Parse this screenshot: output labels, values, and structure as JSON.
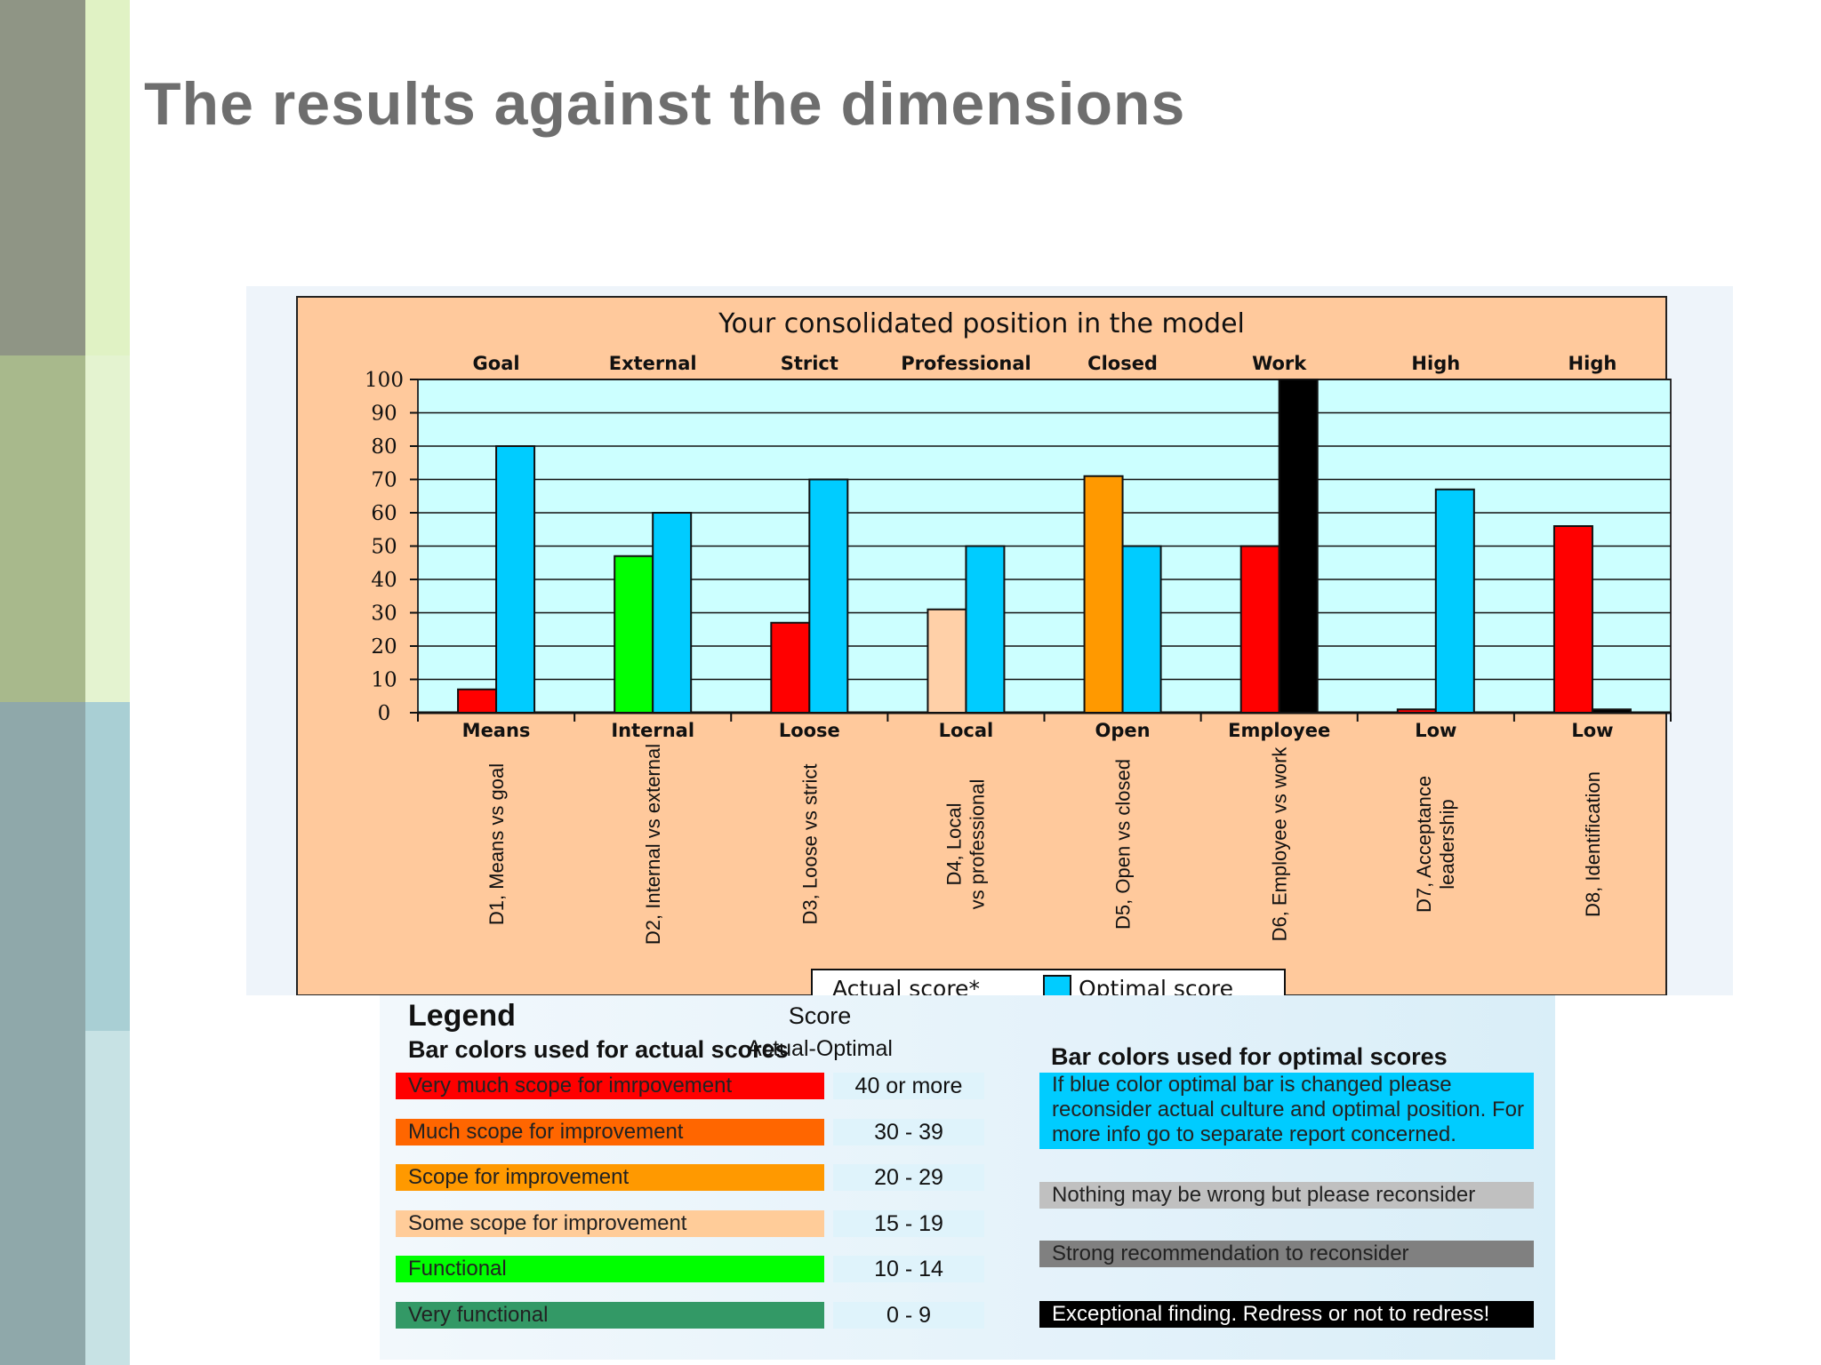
{
  "slide_title": "The results against the dimensions",
  "chart_data": {
    "type": "bar",
    "title": "Your consolidated position in the model",
    "ylim": [
      0,
      100
    ],
    "yticks": [
      0,
      10,
      20,
      30,
      40,
      50,
      60,
      70,
      80,
      90,
      100
    ],
    "top_labels": [
      "Goal",
      "External",
      "Strict",
      "Professional",
      "Closed",
      "Work",
      "High",
      "High"
    ],
    "bottom_labels": [
      "Means",
      "Internal",
      "Loose",
      "Local",
      "Open",
      "Employee",
      "Low",
      "Low"
    ],
    "categories": [
      "D1, Means vs goal",
      "D2, Internal vs external",
      "D3, Loose vs strict",
      "D4, Local vs professional",
      "D5, Open vs closed",
      "D6, Employee vs work",
      "D7, Acceptance leadership",
      "D8, Identification"
    ],
    "series": [
      {
        "name": "Actual score*",
        "values": [
          7,
          47,
          27,
          31,
          71,
          50,
          1,
          56
        ],
        "colors": [
          "#ff0000",
          "#00ff00",
          "#ff0000",
          "#ffd0a8",
          "#ff9900",
          "#ff0000",
          "#ff0000",
          "#ff0000"
        ]
      },
      {
        "name": "Optimal score",
        "values": [
          80,
          60,
          70,
          50,
          50,
          100,
          67,
          1
        ],
        "colors": [
          "#00ccff",
          "#00ccff",
          "#00ccff",
          "#00ccff",
          "#00ccff",
          "#000000",
          "#00ccff",
          "#000000"
        ]
      }
    ],
    "grid": true,
    "legend_position": "bottom-center",
    "colors": {
      "panel": "#ffc99c",
      "plot": "#ccffff",
      "optimal": "#00ccff"
    }
  },
  "legend": {
    "title": "Legend",
    "actual_heading": "Bar colors used for actual scores",
    "score_heading": "Score",
    "score_subheading": "Actual-Optimal",
    "actual_rows": [
      {
        "label": "Very much scope for imrpovement",
        "score": "40 or more",
        "color": "#ff0000"
      },
      {
        "label": "Much scope for improvement",
        "score": "30 - 39",
        "color": "#ff6600"
      },
      {
        "label": "Scope for improvement",
        "score": "20 - 29",
        "color": "#ff9900"
      },
      {
        "label": "Some scope for improvement",
        "score": "15 - 19",
        "color": "#ffcc99"
      },
      {
        "label": "Functional",
        "score": "10 - 14",
        "color": "#00ff00"
      },
      {
        "label": "Very functional",
        "score": "0 - 9",
        "color": "#339966"
      }
    ],
    "optimal_heading": "Bar colors used for optimal scores",
    "optimal_rows": [
      {
        "text": "If blue color optimal bar is changed please reconsider actual culture and optimal position. For more info go to separate report concerned.",
        "color": "#00ccff"
      },
      {
        "text": "Nothing may be wrong but please reconsider",
        "color": "#c0c0c0"
      },
      {
        "text": "Strong recommendation to reconsider",
        "color": "#808080"
      },
      {
        "text": "Exceptional finding. Redress or not to redress!",
        "color": "#000000"
      }
    ]
  }
}
